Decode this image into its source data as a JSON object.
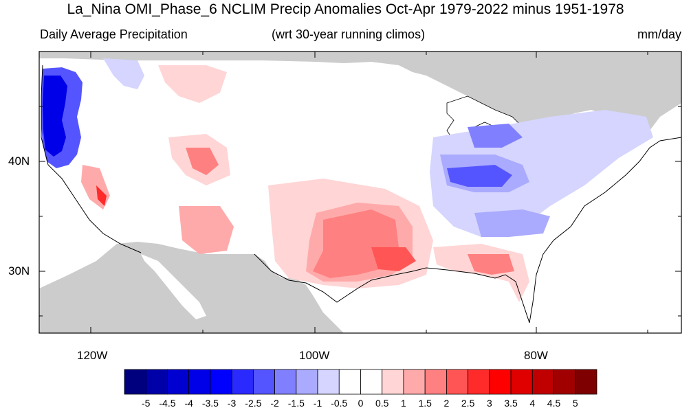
{
  "title": "La_Nina OMI_Phase_6 NCLIM Precip Anomalies Oct-Apr 1979-2022 minus 1951-1978",
  "subtitle_left": "Daily Average Precipitation",
  "subtitle_center": "(wrt 30-year running climos)",
  "subtitle_right": "mm/day",
  "y_tick_labels": [
    "40N",
    "30N"
  ],
  "x_tick_labels": [
    "120W",
    "100W",
    "80W"
  ],
  "colorbar": {
    "colors": [
      "#00007f",
      "#0000a8",
      "#0000d0",
      "#0000e8",
      "#0000ff",
      "#2a2aff",
      "#5555ff",
      "#8080ff",
      "#aaaaff",
      "#d5d5ff",
      "#ffffff",
      "#ffffff",
      "#ffd5d5",
      "#ffaaaa",
      "#ff8080",
      "#ff5555",
      "#ff2a2a",
      "#ff0000",
      "#e00000",
      "#c00000",
      "#a00000",
      "#7f0000"
    ],
    "labels": [
      "-5",
      "-4.5",
      "-4",
      "-3.5",
      "-3",
      "-2.5",
      "-2",
      "-1.5",
      "-1",
      "-0.5",
      "0",
      "0.5",
      "1",
      "1.5",
      "2",
      "2.5",
      "3",
      "3.5",
      "4",
      "4.5",
      "5"
    ]
  },
  "colors": {
    "land_mask": "#cccccc",
    "background": "#ffffff"
  }
}
